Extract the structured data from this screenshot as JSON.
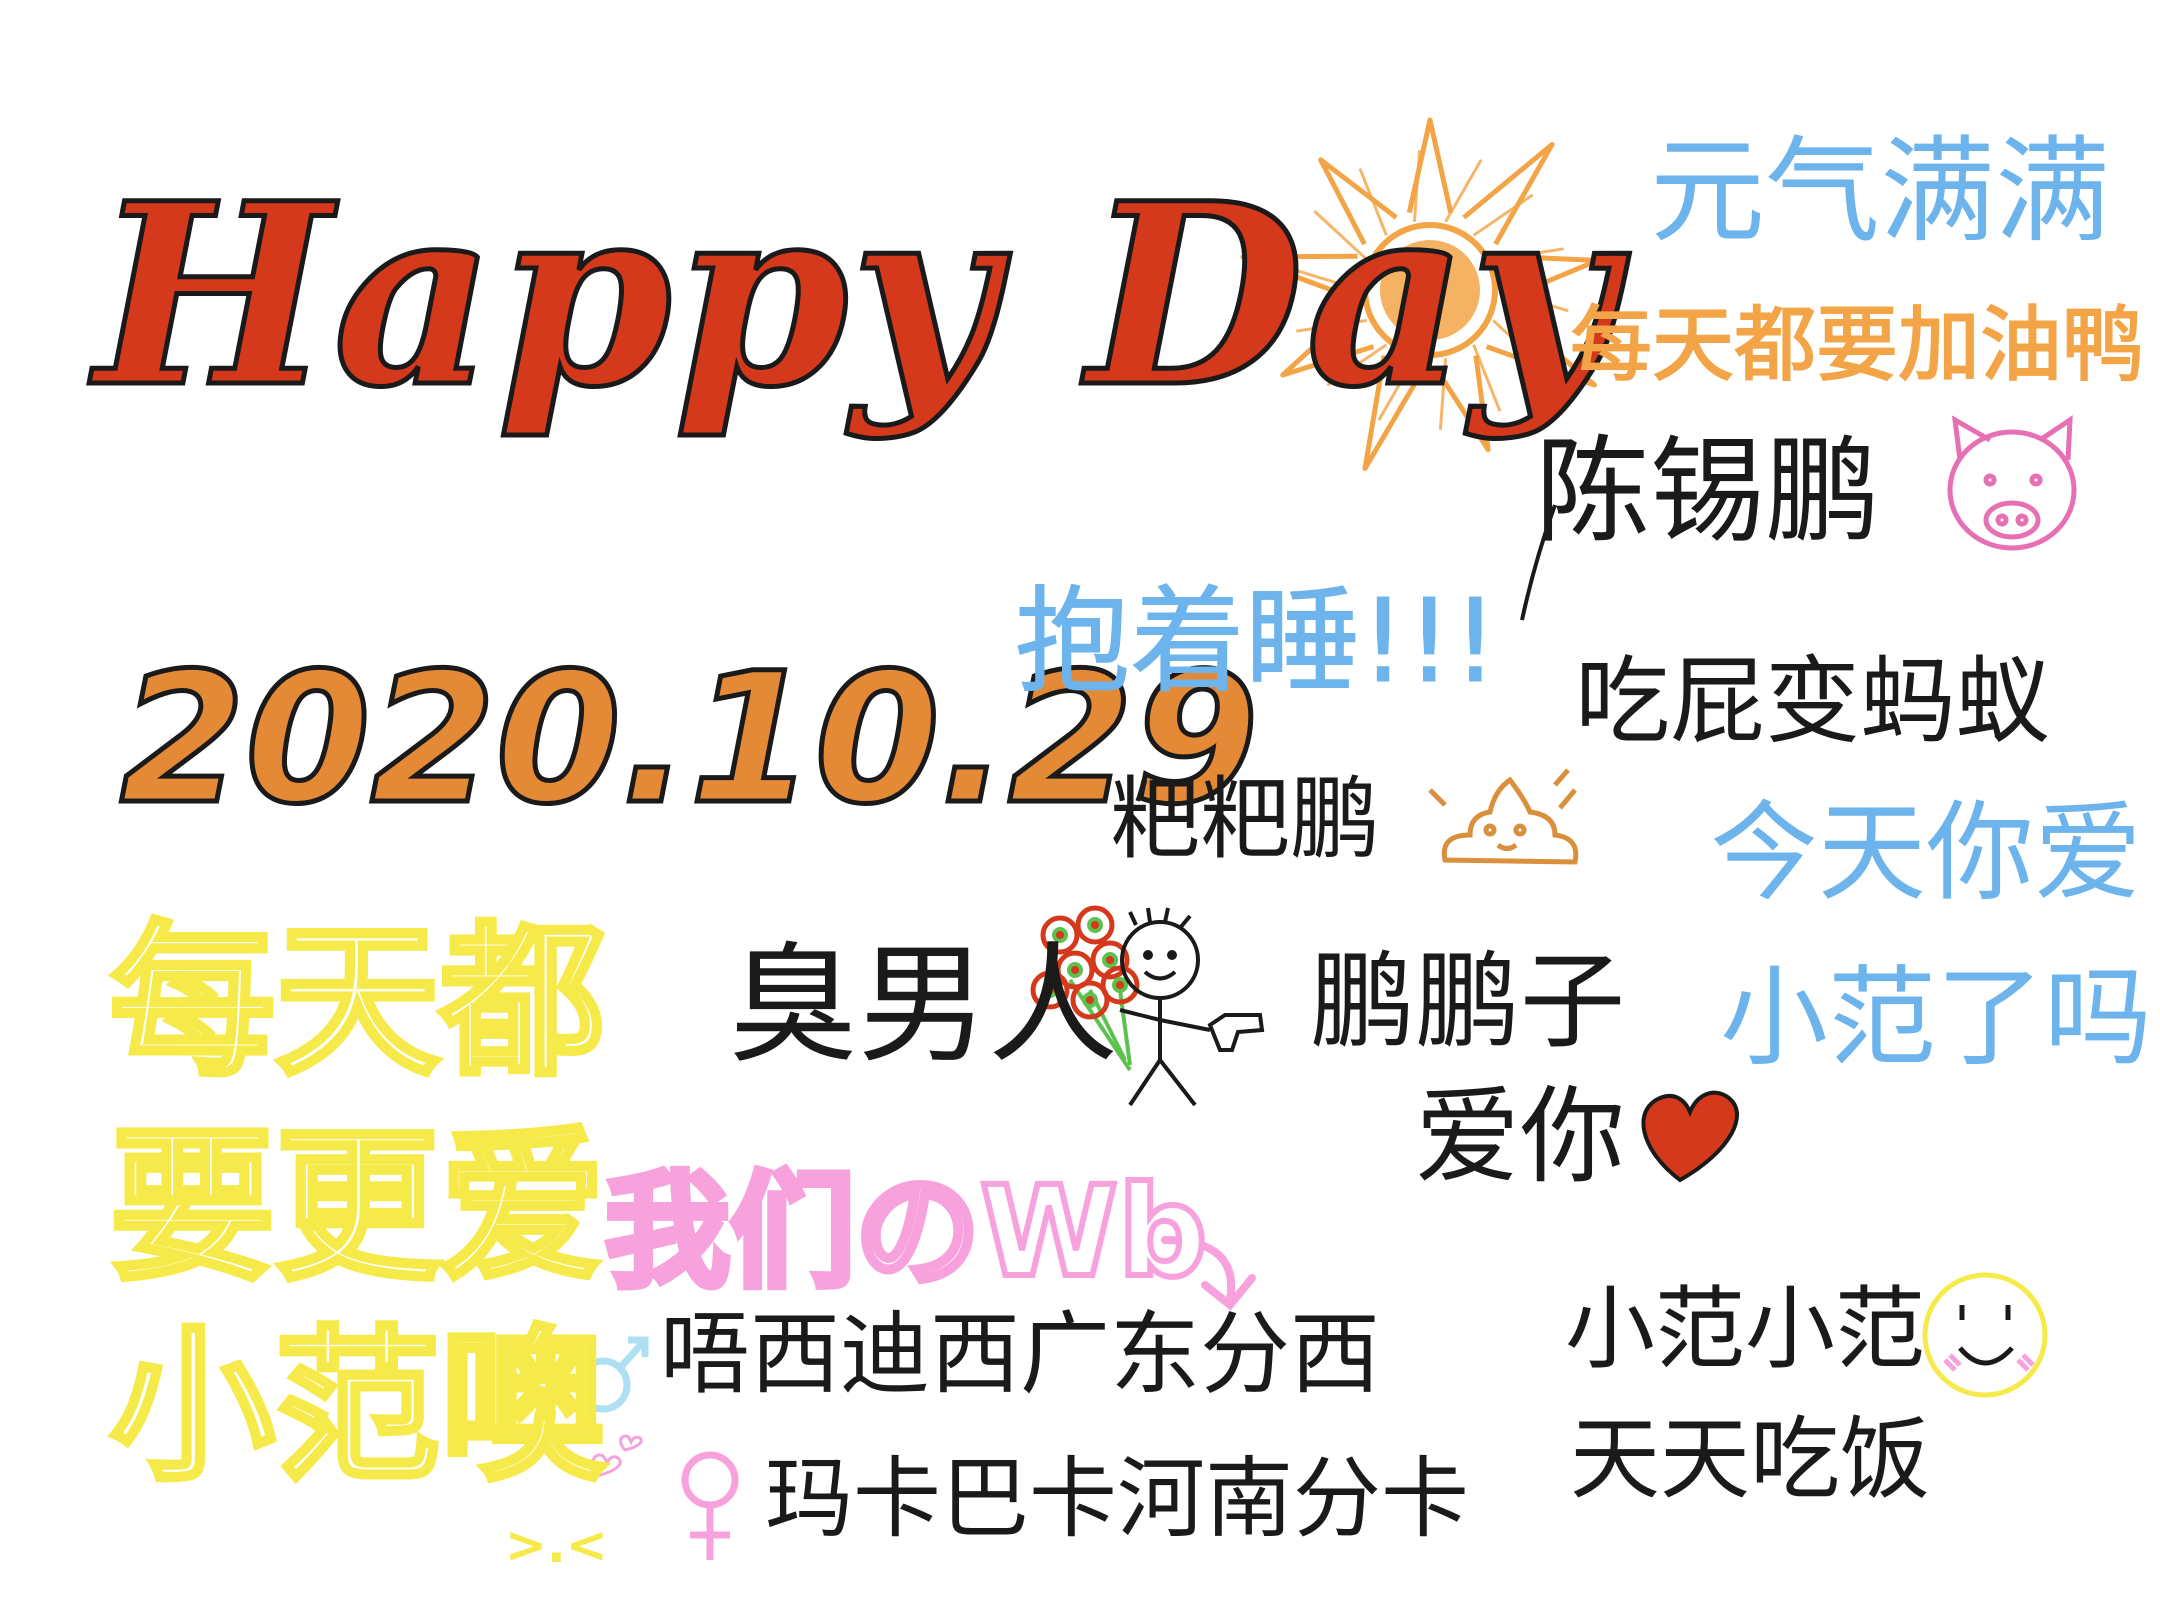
{
  "colors": {
    "title_fill": "#d5391b",
    "date_fill": "#e48a36",
    "outline": "#1a1a1a",
    "sun": "#f3a446",
    "blue_text": "#6db4ec",
    "yellow_text": "#f6ea4a",
    "pink_text": "#f7a2dc",
    "pig": "#e76fb4",
    "heart": "#d5391b",
    "smiley": "#f6ea4a",
    "poop": "#d98f3c",
    "flowers": "#d5391b",
    "leaves": "#5cc24e"
  },
  "texts": {
    "title": "Happy Day",
    "date": "2020.10.29",
    "energy": "元气满满",
    "cheer": "每天都要加油鸭",
    "name": "陈锡鹏",
    "hug_sleep": "抱着睡!!!",
    "fart": "吃屁变蚂蚁",
    "baba": "粑粑鹏",
    "today_love": "今天你爱",
    "xiaofan_question": "小范了吗",
    "smelly_man": "臭男人",
    "pengpengzi": "鹏鹏子",
    "love_you": "爱你",
    "daily_line1": "每天都",
    "daily_line2": "要更爱",
    "daily_line3": "小范噢",
    "ours": "我们のWb",
    "guangdong": "唔西迪西广东分西",
    "henan": "玛卡巴卡河南分卡",
    "xiaofan_repeat": "小范小范",
    "eat_daily": "天天吃饭",
    "giggle": ">.<"
  },
  "icons": [
    "sun-icon",
    "pig-face-icon",
    "poop-icon",
    "flower-bouquet-icon",
    "stick-figure-icon",
    "heart-icon",
    "smiley-face-icon",
    "male-symbol-icon",
    "female-symbol-icon",
    "small-hearts-icon",
    "curved-arrow-icon"
  ]
}
